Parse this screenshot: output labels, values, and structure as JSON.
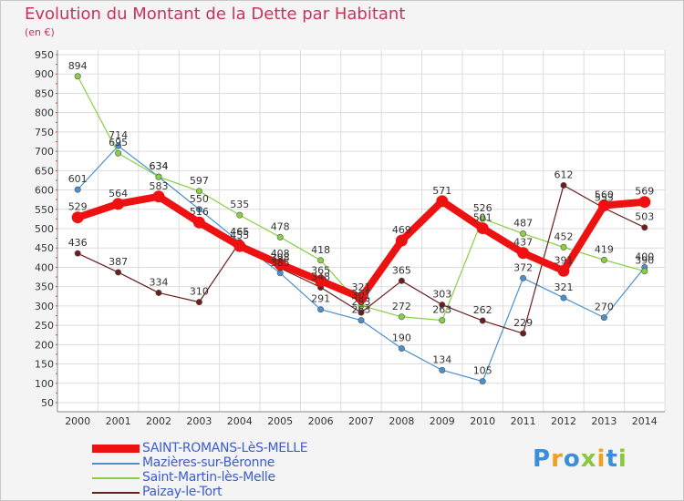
{
  "title": "Evolution du Montant de la Dette par Habitant",
  "unit": "(en €)",
  "logo": {
    "text": "Proxiti",
    "letters": [
      {
        "ch": "P",
        "color": "#3a8fd8"
      },
      {
        "ch": "r",
        "color": "#f0a020"
      },
      {
        "ch": "o",
        "color": "#3a8fd8"
      },
      {
        "ch": "x",
        "color": "#8cc63f"
      },
      {
        "ch": "i",
        "color": "#f0a020"
      },
      {
        "ch": "t",
        "color": "#3a8fd8"
      },
      {
        "ch": "i",
        "color": "#8cc63f"
      }
    ]
  },
  "chart_data": {
    "type": "line",
    "categories": [
      "2000",
      "2001",
      "2002",
      "2003",
      "2004",
      "2005",
      "2006",
      "2007",
      "2008",
      "2009",
      "2010",
      "2011",
      "2012",
      "2013",
      "2014"
    ],
    "y_ticks": [
      50,
      100,
      150,
      200,
      250,
      300,
      350,
      400,
      450,
      500,
      550,
      600,
      650,
      700,
      750,
      800,
      850,
      900,
      950
    ],
    "ylim": [
      50,
      950
    ],
    "grid": true,
    "series": [
      {
        "name": "SAINT-ROMANS-LèS-MELLE",
        "color": "#ee1111",
        "values": [
          529,
          564,
          583,
          516,
          455,
          408,
          365,
          321,
          469,
          571,
          501,
          437,
          391,
          560,
          569
        ]
      },
      {
        "name": "Mazières-sur-Béronne",
        "color": "#4a90cc",
        "values": [
          601,
          714,
          634,
          550,
          465,
          385,
          291,
          263,
          190,
          134,
          105,
          372,
          321,
          270,
          400
        ]
      },
      {
        "name": "Saint-Martin-lès-Melle",
        "color": "#88d040",
        "values": [
          894,
          695,
          634,
          597,
          535,
          478,
          418,
          301,
          272,
          263,
          526,
          487,
          452,
          419,
          390
        ]
      },
      {
        "name": "Paizay-le-Tort",
        "color": "#6a1e1e",
        "values": [
          436,
          387,
          334,
          310,
          465,
          398,
          348,
          283,
          365,
          303,
          262,
          229,
          612,
          553,
          503
        ]
      }
    ]
  }
}
